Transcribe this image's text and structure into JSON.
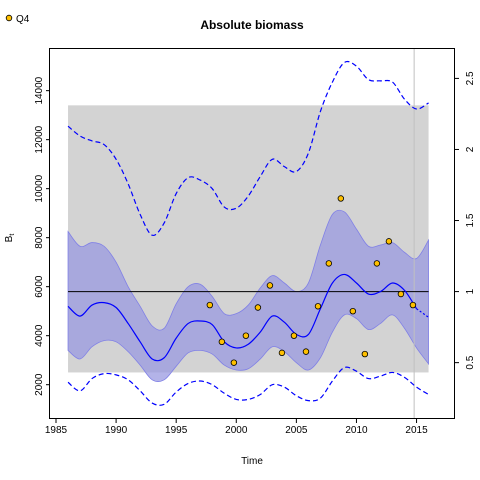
{
  "chart_data": {
    "type": "line",
    "title": "Absolute biomass",
    "xlabel": "Time",
    "ylabel": "B",
    "ylabel_subscript": "t",
    "xlim": [
      1984.5,
      2018.2
    ],
    "ylim": [
      600,
      15700
    ],
    "xticks": [
      "1985",
      "1990",
      "1995",
      "2000",
      "2005",
      "2010",
      "2015"
    ],
    "yticks": [
      "2000",
      "4000",
      "6000",
      "8000",
      "10000",
      "12000",
      "14000"
    ],
    "y2ticks": [
      "0.5",
      "1",
      "1.5",
      "2",
      "2.5"
    ],
    "y2_per_unit": 5800,
    "grid": false,
    "legend": {
      "position": "top-left",
      "entries": [
        {
          "name": "Q4",
          "marker": "circle",
          "color": "#ffc000"
        }
      ]
    },
    "reference_region": {
      "x": [
        1986,
        2016
      ],
      "y": [
        2500,
        13400
      ],
      "color": "#d3d3d3"
    },
    "reference_line": {
      "y": 5800,
      "color": "#000000"
    },
    "vertical_line": {
      "x": 2014.8,
      "color": "#c0c0c0"
    },
    "colors": {
      "median": "#0000ff",
      "ci_fill": "#9a9ae0",
      "dashed": "#0000ff",
      "points_fill": "#ffc000"
    },
    "series": [
      {
        "name": "Q4",
        "kind": "points",
        "points": [
          [
            1997.8,
            5250
          ],
          [
            1998.8,
            3750
          ],
          [
            1999.8,
            2900
          ],
          [
            2000.8,
            4000
          ],
          [
            2001.8,
            5150
          ],
          [
            2002.8,
            6050
          ],
          [
            2003.8,
            3300
          ],
          [
            2004.8,
            4000
          ],
          [
            2005.8,
            3350
          ],
          [
            2006.8,
            5200
          ],
          [
            2007.7,
            6950
          ],
          [
            2008.7,
            9600
          ],
          [
            2009.7,
            5000
          ],
          [
            2010.7,
            3250
          ],
          [
            2011.7,
            6950
          ],
          [
            2012.7,
            7850
          ],
          [
            2013.7,
            5700
          ],
          [
            2014.7,
            5250
          ]
        ]
      }
    ],
    "median": [
      [
        1986,
        5200
      ],
      [
        1987,
        4800
      ],
      [
        1988,
        5250
      ],
      [
        1989,
        5350
      ],
      [
        1990,
        5150
      ],
      [
        1991,
        4500
      ],
      [
        1992,
        3750
      ],
      [
        1993,
        3050
      ],
      [
        1994,
        3100
      ],
      [
        1995,
        3900
      ],
      [
        1996,
        4500
      ],
      [
        1997,
        4600
      ],
      [
        1998,
        4450
      ],
      [
        1999,
        3750
      ],
      [
        2000,
        3500
      ],
      [
        2001,
        3650
      ],
      [
        2002,
        4150
      ],
      [
        2003,
        4800
      ],
      [
        2004,
        4550
      ],
      [
        2005,
        4050
      ],
      [
        2006,
        4050
      ],
      [
        2007,
        5100
      ],
      [
        2008,
        6150
      ],
      [
        2009,
        6500
      ],
      [
        2010,
        6150
      ],
      [
        2011,
        5700
      ],
      [
        2012,
        5800
      ],
      [
        2013,
        6150
      ],
      [
        2014,
        5850
      ],
      [
        2015,
        5100
      ],
      [
        2016,
        4750
      ]
    ],
    "ci_upper": [
      [
        1986,
        8250
      ],
      [
        1987,
        7650
      ],
      [
        1988,
        7800
      ],
      [
        1989,
        7650
      ],
      [
        1990,
        7000
      ],
      [
        1991,
        6000
      ],
      [
        1992,
        5200
      ],
      [
        1993,
        4400
      ],
      [
        1994,
        4300
      ],
      [
        1995,
        5300
      ],
      [
        1996,
        6000
      ],
      [
        1997,
        6100
      ],
      [
        1998,
        5600
      ],
      [
        1999,
        4900
      ],
      [
        2000,
        4900
      ],
      [
        2001,
        5250
      ],
      [
        2002,
        5950
      ],
      [
        2003,
        6450
      ],
      [
        2004,
        6150
      ],
      [
        2005,
        5800
      ],
      [
        2006,
        6150
      ],
      [
        2007,
        7700
      ],
      [
        2008,
        8950
      ],
      [
        2009,
        9050
      ],
      [
        2010,
        8350
      ],
      [
        2011,
        7650
      ],
      [
        2012,
        7700
      ],
      [
        2013,
        7800
      ],
      [
        2014,
        7400
      ],
      [
        2015,
        7150
      ],
      [
        2016,
        7900
      ]
    ],
    "ci_lower": [
      [
        1986,
        3400
      ],
      [
        1987,
        3050
      ],
      [
        1988,
        3550
      ],
      [
        1989,
        3800
      ],
      [
        1990,
        3750
      ],
      [
        1991,
        3350
      ],
      [
        1992,
        2800
      ],
      [
        1993,
        2200
      ],
      [
        1994,
        2200
      ],
      [
        1995,
        2750
      ],
      [
        1996,
        3300
      ],
      [
        1997,
        3400
      ],
      [
        1998,
        3250
      ],
      [
        1999,
        2800
      ],
      [
        2000,
        2600
      ],
      [
        2001,
        2650
      ],
      [
        2002,
        3050
      ],
      [
        2003,
        3550
      ],
      [
        2004,
        3350
      ],
      [
        2005,
        2900
      ],
      [
        2006,
        2600
      ],
      [
        2007,
        3100
      ],
      [
        2008,
        4150
      ],
      [
        2009,
        4850
      ],
      [
        2010,
        4700
      ],
      [
        2011,
        4250
      ],
      [
        2012,
        4500
      ],
      [
        2013,
        4850
      ],
      [
        2014,
        4300
      ],
      [
        2015,
        3500
      ],
      [
        2016,
        2850
      ]
    ],
    "dashed_upper": [
      [
        1986,
        12550
      ],
      [
        1987,
        12150
      ],
      [
        1988,
        11950
      ],
      [
        1989,
        11800
      ],
      [
        1990,
        11200
      ],
      [
        1991,
        10200
      ],
      [
        1992,
        8950
      ],
      [
        1993,
        8100
      ],
      [
        1994,
        8600
      ],
      [
        1995,
        9800
      ],
      [
        1996,
        10450
      ],
      [
        1997,
        10350
      ],
      [
        1998,
        10000
      ],
      [
        1999,
        9250
      ],
      [
        2000,
        9200
      ],
      [
        2001,
        9700
      ],
      [
        2002,
        10500
      ],
      [
        2003,
        11200
      ],
      [
        2004,
        10900
      ],
      [
        2005,
        10700
      ],
      [
        2006,
        11450
      ],
      [
        2007,
        13150
      ],
      [
        2008,
        14350
      ],
      [
        2009,
        15150
      ],
      [
        2010,
        15000
      ],
      [
        2011,
        14450
      ],
      [
        2012,
        14400
      ],
      [
        2013,
        14350
      ],
      [
        2014,
        13650
      ],
      [
        2015,
        13250
      ],
      [
        2016,
        13500
      ]
    ],
    "dashed_lower": [
      [
        1986,
        2100
      ],
      [
        1987,
        1750
      ],
      [
        1988,
        2250
      ],
      [
        1989,
        2450
      ],
      [
        1990,
        2400
      ],
      [
        1991,
        2200
      ],
      [
        1992,
        1750
      ],
      [
        1993,
        1250
      ],
      [
        1994,
        1200
      ],
      [
        1995,
        1700
      ],
      [
        1996,
        2050
      ],
      [
        1997,
        2150
      ],
      [
        1998,
        2000
      ],
      [
        1999,
        1650
      ],
      [
        2000,
        1400
      ],
      [
        2001,
        1400
      ],
      [
        2002,
        1600
      ],
      [
        2003,
        2000
      ],
      [
        2004,
        1900
      ],
      [
        2005,
        1550
      ],
      [
        2006,
        1350
      ],
      [
        2007,
        1450
      ],
      [
        2008,
        2150
      ],
      [
        2009,
        2700
      ],
      [
        2010,
        2550
      ],
      [
        2011,
        2250
      ],
      [
        2012,
        2350
      ],
      [
        2013,
        2500
      ],
      [
        2014,
        2300
      ],
      [
        2015,
        1900
      ],
      [
        2016,
        1600
      ]
    ]
  }
}
